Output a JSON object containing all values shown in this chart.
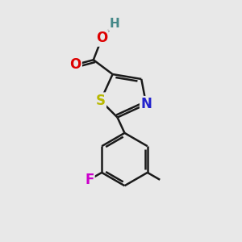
{
  "background_color": "#e8e8e8",
  "bond_color": "#1a1a1a",
  "bond_width": 1.8,
  "atom_colors": {
    "S": "#b8b800",
    "N": "#2222cc",
    "O": "#dd0000",
    "H": "#448888",
    "F": "#cc00cc",
    "C": "#1a1a1a"
  },
  "font_size": 11,
  "fig_size": [
    3.0,
    3.0
  ],
  "dpi": 100
}
